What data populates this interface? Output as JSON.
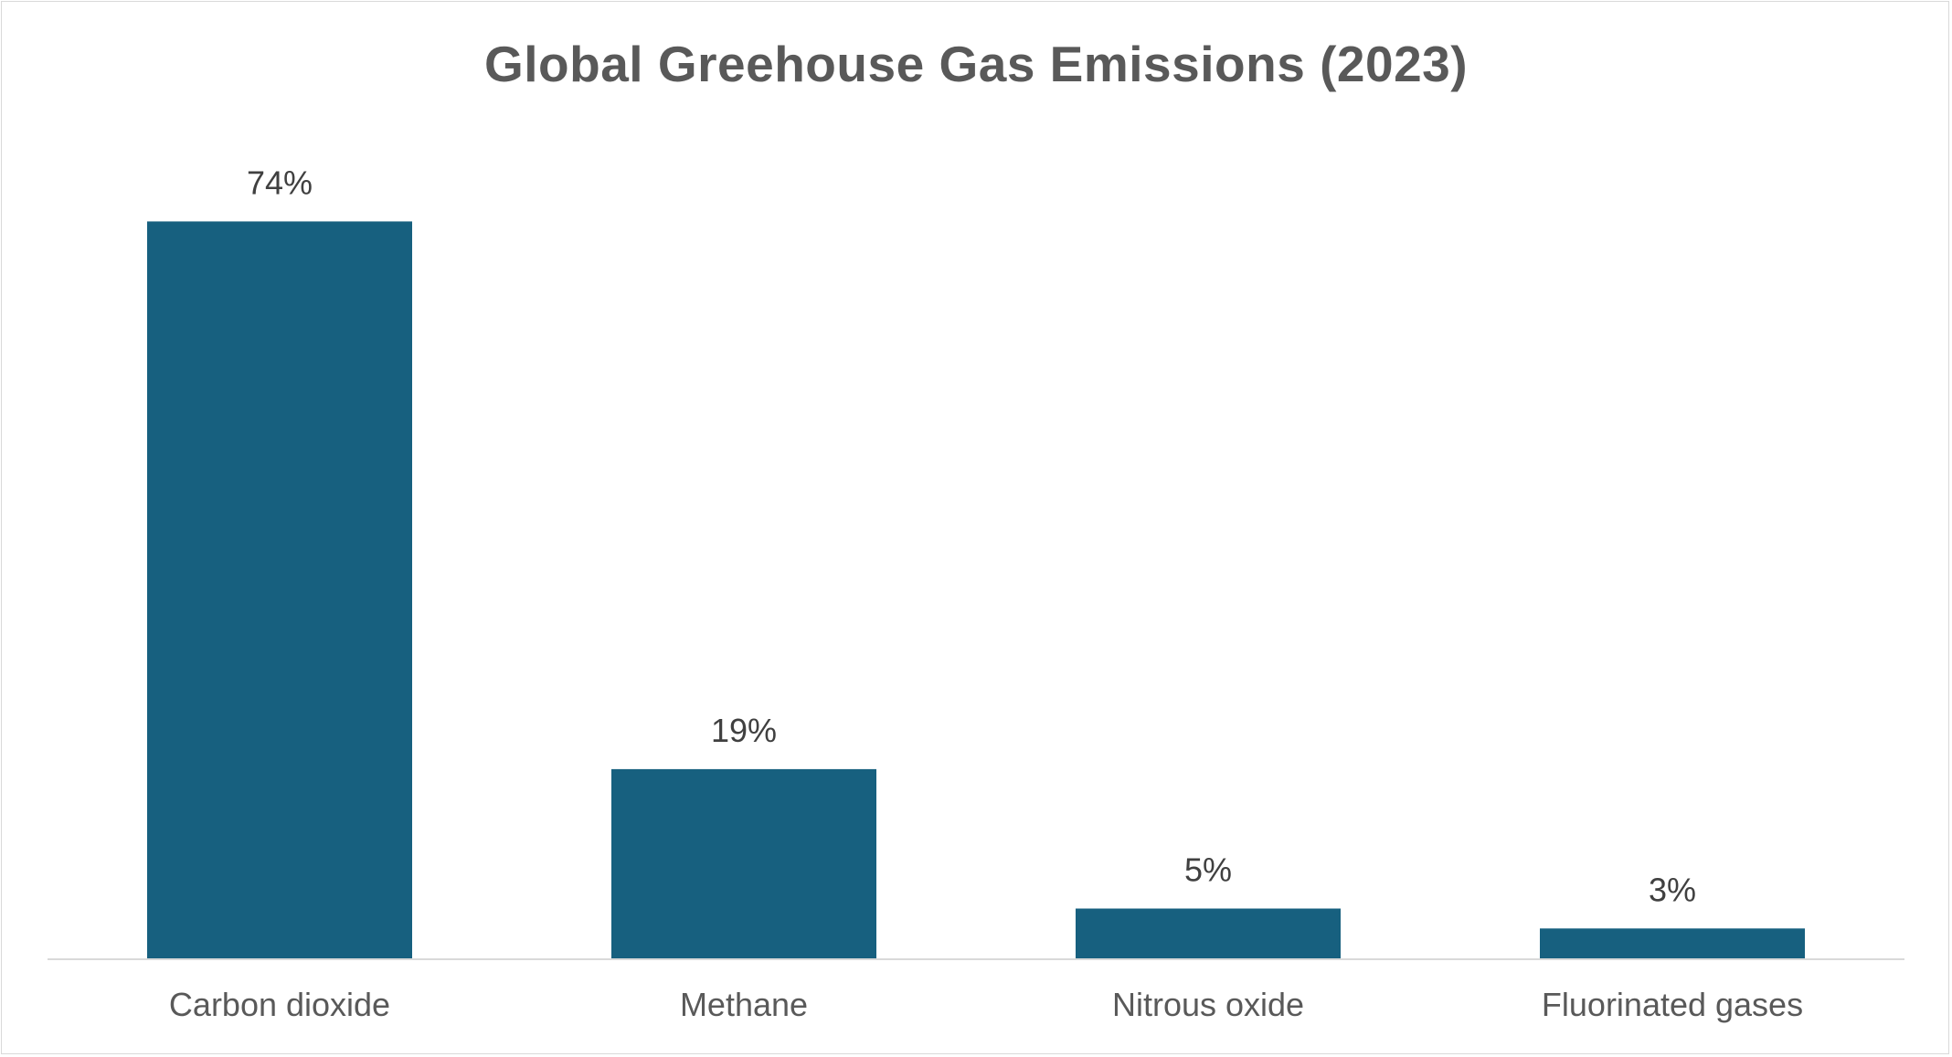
{
  "chart_data": {
    "type": "bar",
    "title": "Global Greehouse Gas Emissions (2023)",
    "categories": [
      "Carbon dioxide",
      "Methane",
      "Nitrous oxide",
      "Fluorinated gases"
    ],
    "values": [
      74,
      19,
      5,
      3
    ],
    "data_labels": [
      "74%",
      "19%",
      "5%",
      "3%"
    ],
    "ylim": [
      0,
      80
    ],
    "grid": false,
    "legend": "none",
    "bar_color": "#17607f",
    "axis_color": "#d9d9d9"
  }
}
